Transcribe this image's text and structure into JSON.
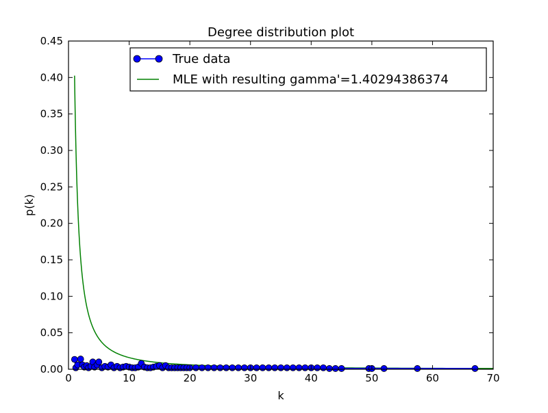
{
  "chart_data": {
    "type": "line",
    "title": "Degree distribution plot",
    "xlabel": "k",
    "ylabel": "p(k)",
    "xlim": [
      0,
      70
    ],
    "ylim": [
      0,
      0.45
    ],
    "x_ticks": [
      "0",
      "10",
      "20",
      "30",
      "40",
      "50",
      "60",
      "70"
    ],
    "y_ticks": [
      "0.00",
      "0.05",
      "0.10",
      "0.15",
      "0.20",
      "0.25",
      "0.30",
      "0.35",
      "0.40",
      "0.45"
    ],
    "grid": false,
    "legend_position": "top-right",
    "series": [
      {
        "name": "True data",
        "type": "line-marker",
        "color": "#0000ff",
        "marker": "circle",
        "points": [
          [
            1.0,
            0.0135
          ],
          [
            1.2,
            0.002
          ],
          [
            1.5,
            0.006
          ],
          [
            2.0,
            0.014
          ],
          [
            2.3,
            0.006
          ],
          [
            2.6,
            0.003
          ],
          [
            3.0,
            0.005
          ],
          [
            3.3,
            0.002
          ],
          [
            3.7,
            0.004
          ],
          [
            4.0,
            0.01
          ],
          [
            4.3,
            0.003
          ],
          [
            4.7,
            0.006
          ],
          [
            5.0,
            0.01
          ],
          [
            5.5,
            0.002
          ],
          [
            6.0,
            0.004
          ],
          [
            6.5,
            0.003
          ],
          [
            7.0,
            0.006
          ],
          [
            7.5,
            0.002
          ],
          [
            8.0,
            0.004
          ],
          [
            8.5,
            0.002
          ],
          [
            9.0,
            0.003
          ],
          [
            9.5,
            0.004
          ],
          [
            10.0,
            0.003
          ],
          [
            10.5,
            0.002
          ],
          [
            11.0,
            0.002
          ],
          [
            11.5,
            0.003
          ],
          [
            12.0,
            0.008
          ],
          [
            12.5,
            0.003
          ],
          [
            13.0,
            0.002
          ],
          [
            13.5,
            0.002
          ],
          [
            14.0,
            0.003
          ],
          [
            14.5,
            0.004
          ],
          [
            15.0,
            0.005
          ],
          [
            15.5,
            0.002
          ],
          [
            16.0,
            0.005
          ],
          [
            16.5,
            0.002
          ],
          [
            17.0,
            0.002
          ],
          [
            17.5,
            0.002
          ],
          [
            18.0,
            0.002
          ],
          [
            18.5,
            0.002
          ],
          [
            19.0,
            0.002
          ],
          [
            19.5,
            0.002
          ],
          [
            20.0,
            0.002
          ],
          [
            21.0,
            0.002
          ],
          [
            22.0,
            0.002
          ],
          [
            23.0,
            0.002
          ],
          [
            24.0,
            0.002
          ],
          [
            25.0,
            0.002
          ],
          [
            26.0,
            0.002
          ],
          [
            27.0,
            0.002
          ],
          [
            28.0,
            0.002
          ],
          [
            29.0,
            0.002
          ],
          [
            30.0,
            0.002
          ],
          [
            31.0,
            0.002
          ],
          [
            32.0,
            0.002
          ],
          [
            33.0,
            0.002
          ],
          [
            34.0,
            0.002
          ],
          [
            35.0,
            0.002
          ],
          [
            36.0,
            0.002
          ],
          [
            37.0,
            0.002
          ],
          [
            38.0,
            0.002
          ],
          [
            39.0,
            0.002
          ],
          [
            40.0,
            0.002
          ],
          [
            41.0,
            0.002
          ],
          [
            42.0,
            0.002
          ],
          [
            43.0,
            0.001
          ],
          [
            44.0,
            0.001
          ],
          [
            45.0,
            0.001
          ],
          [
            49.5,
            0.001
          ],
          [
            50.0,
            0.001
          ],
          [
            52.0,
            0.001
          ],
          [
            57.5,
            0.001
          ],
          [
            67.0,
            0.001
          ]
        ]
      },
      {
        "name": "MLE with resulting gamma'=1.40294386374",
        "type": "line",
        "color": "#008000",
        "function": "power_law",
        "exponent": 1.40294386374,
        "coefficient": 0.4025,
        "x_start": 1.0,
        "x_end": 70
      }
    ]
  }
}
